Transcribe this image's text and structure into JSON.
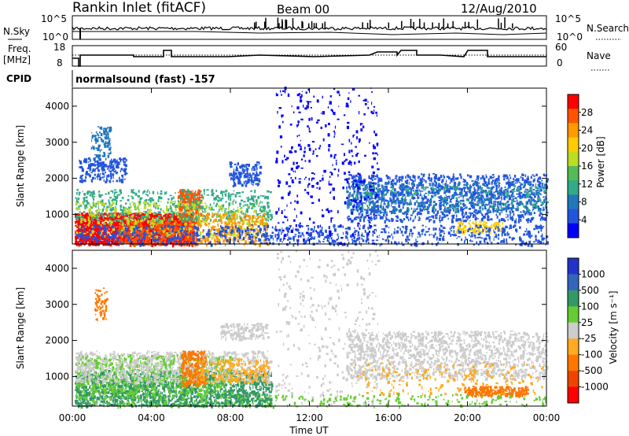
{
  "header": {
    "station": "Rankin Inlet (fitACF)",
    "beam": "Beam 00",
    "date": "12/Aug/2010"
  },
  "panels": {
    "nsky": {
      "left_label": "N.Sky",
      "left_ticks": [
        "10^5",
        "10^0"
      ],
      "right_label": "N.Search",
      "right_ticks": [
        "10^5",
        "10^0"
      ]
    },
    "freq": {
      "left_label_1": "Freq.",
      "left_label_2": "[MHz]",
      "left_ticks": [
        "18",
        "8"
      ],
      "right_label": "Nave",
      "right_ticks": [
        "60",
        "0"
      ]
    },
    "cpid": {
      "label": "CPID",
      "text": "normalsound (fast) -157"
    }
  },
  "chart_data": [
    {
      "type": "heatmap",
      "quantity": "power",
      "ylabel": "Slant Range [km]",
      "ylim": [
        180,
        4500
      ],
      "y_ticks": [
        "4000",
        "3000",
        "2000",
        "1000"
      ],
      "colorbar": {
        "label": "Power [dB]",
        "ticks": [
          "28",
          "24",
          "20",
          "16",
          "12",
          "8",
          "4"
        ],
        "colors": [
          "#ff0000",
          "#ff5500",
          "#ff9900",
          "#ffcc00",
          "#bbdd22",
          "#55bb55",
          "#33aa88",
          "#2277bb",
          "#2255dd",
          "#0000ff"
        ]
      }
    },
    {
      "type": "heatmap",
      "quantity": "velocity",
      "ylabel": "Slant Range [km]",
      "ylim": [
        180,
        4500
      ],
      "y_ticks": [
        "4000",
        "3000",
        "2000",
        "1000"
      ],
      "colorbar": {
        "label": "Velocity [m s⁻¹]",
        "ticks": [
          "1000",
          "500",
          "100",
          "25",
          "-25",
          "-100",
          "-500",
          "-1000"
        ],
        "colors": [
          "#2233cc",
          "#3366bb",
          "#339966",
          "#66cc33",
          "#cccccc",
          "#ffaa22",
          "#ff7700",
          "#ee4400",
          "#ff0000"
        ]
      }
    }
  ],
  "x_axis": {
    "label": "Time UT",
    "ticks": [
      "00:00",
      "04:00",
      "08:00",
      "12:00",
      "16:00",
      "20:00",
      "00:00"
    ]
  }
}
